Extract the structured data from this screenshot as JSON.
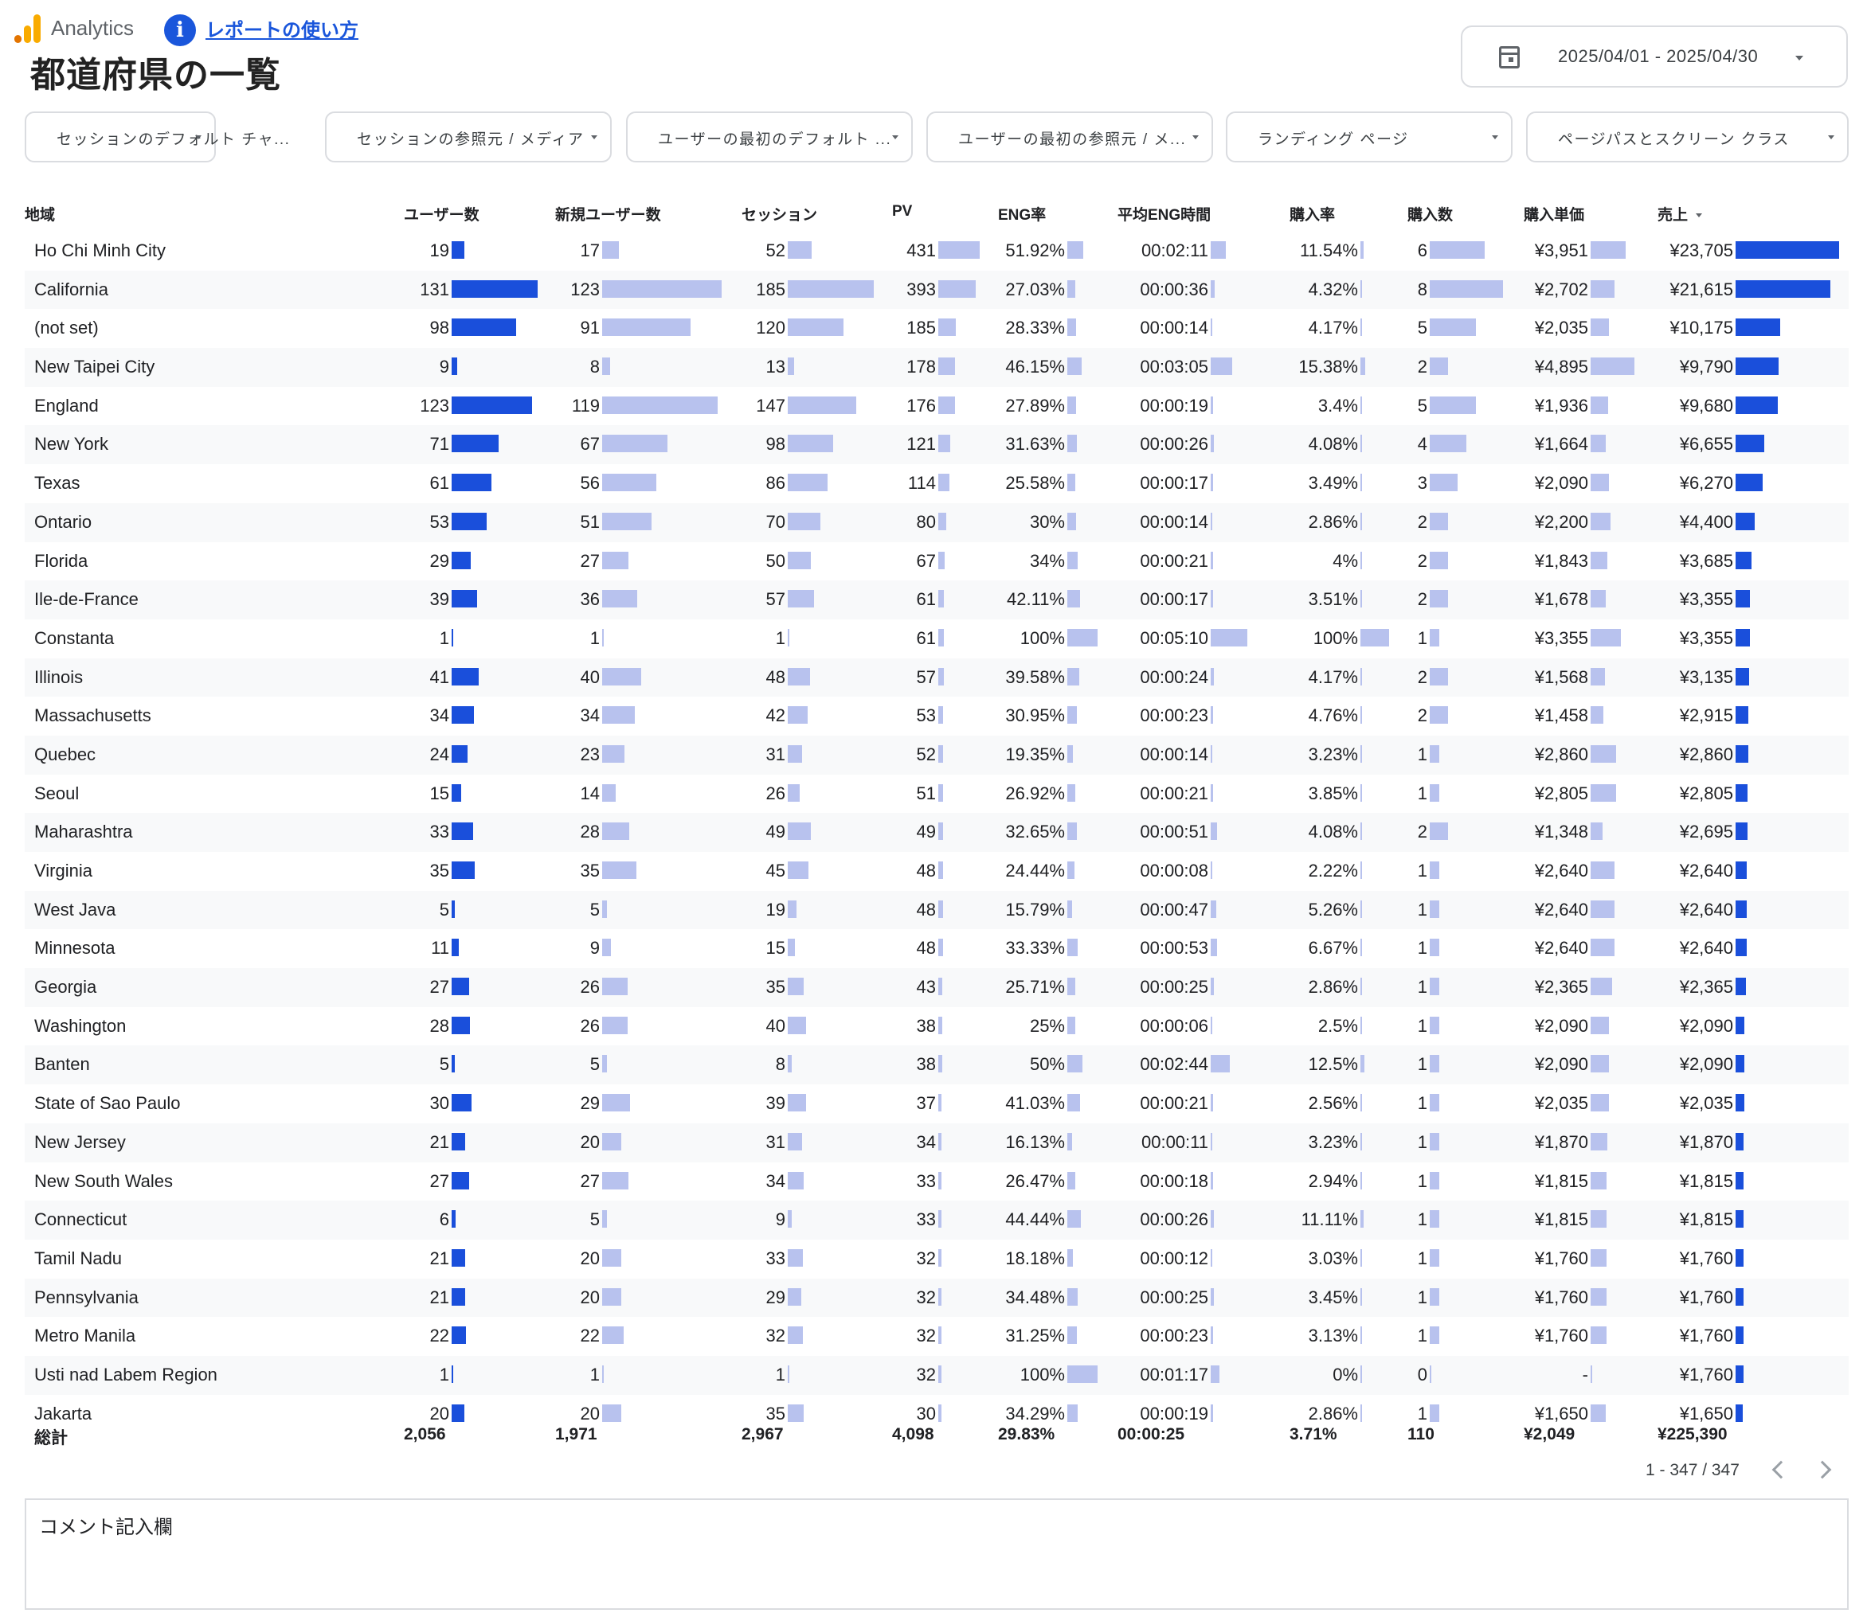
{
  "header": {
    "app_name": "Analytics",
    "help_link": "レポートの使い方",
    "title": "都道府県の一覧",
    "date_range": "2025/04/01 - 2025/04/30"
  },
  "colors": {
    "bar_primary": "#1a4fdb",
    "bar_secondary": "#b8c2ee",
    "link": "#1a56db",
    "logo_orange": "#f9ab00",
    "logo_dark": "#e37400"
  },
  "filters": [
    "セッションのデフォルト チャ...",
    "セッションの参照元 / メディア",
    "ユーザーの最初のデフォルト ...",
    "ユーザーの最初の参照元 / メ...",
    "ランディング ページ",
    "ページパスとスクリーン クラス"
  ],
  "table": {
    "columns": [
      "地域",
      "ユーザー数",
      "新規ユーザー数",
      "セッション",
      "PV",
      "ENG率",
      "平均ENG時間",
      "購入率",
      "購入数",
      "購入単価",
      "売上"
    ],
    "sorted_column": "売上",
    "sort_direction": "descending",
    "rows": [
      {
        "region": "Ho Chi Minh City",
        "users": "19",
        "new_users": "17",
        "sessions": "52",
        "pv": "431",
        "eng_rate": "51.92%",
        "eng_time": "00:02:11",
        "purchase_rate": "11.54%",
        "purchases": "6",
        "unit_price": "¥3,951",
        "revenue": "¥23,705"
      },
      {
        "region": "California",
        "users": "131",
        "new_users": "123",
        "sessions": "185",
        "pv": "393",
        "eng_rate": "27.03%",
        "eng_time": "00:00:36",
        "purchase_rate": "4.32%",
        "purchases": "8",
        "unit_price": "¥2,702",
        "revenue": "¥21,615"
      },
      {
        "region": "(not set)",
        "users": "98",
        "new_users": "91",
        "sessions": "120",
        "pv": "185",
        "eng_rate": "28.33%",
        "eng_time": "00:00:14",
        "purchase_rate": "4.17%",
        "purchases": "5",
        "unit_price": "¥2,035",
        "revenue": "¥10,175"
      },
      {
        "region": "New Taipei City",
        "users": "9",
        "new_users": "8",
        "sessions": "13",
        "pv": "178",
        "eng_rate": "46.15%",
        "eng_time": "00:03:05",
        "purchase_rate": "15.38%",
        "purchases": "2",
        "unit_price": "¥4,895",
        "revenue": "¥9,790"
      },
      {
        "region": "England",
        "users": "123",
        "new_users": "119",
        "sessions": "147",
        "pv": "176",
        "eng_rate": "27.89%",
        "eng_time": "00:00:19",
        "purchase_rate": "3.4%",
        "purchases": "5",
        "unit_price": "¥1,936",
        "revenue": "¥9,680"
      },
      {
        "region": "New York",
        "users": "71",
        "new_users": "67",
        "sessions": "98",
        "pv": "121",
        "eng_rate": "31.63%",
        "eng_time": "00:00:26",
        "purchase_rate": "4.08%",
        "purchases": "4",
        "unit_price": "¥1,664",
        "revenue": "¥6,655"
      },
      {
        "region": "Texas",
        "users": "61",
        "new_users": "56",
        "sessions": "86",
        "pv": "114",
        "eng_rate": "25.58%",
        "eng_time": "00:00:17",
        "purchase_rate": "3.49%",
        "purchases": "3",
        "unit_price": "¥2,090",
        "revenue": "¥6,270"
      },
      {
        "region": "Ontario",
        "users": "53",
        "new_users": "51",
        "sessions": "70",
        "pv": "80",
        "eng_rate": "30%",
        "eng_time": "00:00:14",
        "purchase_rate": "2.86%",
        "purchases": "2",
        "unit_price": "¥2,200",
        "revenue": "¥4,400"
      },
      {
        "region": "Florida",
        "users": "29",
        "new_users": "27",
        "sessions": "50",
        "pv": "67",
        "eng_rate": "34%",
        "eng_time": "00:00:21",
        "purchase_rate": "4%",
        "purchases": "2",
        "unit_price": "¥1,843",
        "revenue": "¥3,685"
      },
      {
        "region": "Ile-de-France",
        "users": "39",
        "new_users": "36",
        "sessions": "57",
        "pv": "61",
        "eng_rate": "42.11%",
        "eng_time": "00:00:17",
        "purchase_rate": "3.51%",
        "purchases": "2",
        "unit_price": "¥1,678",
        "revenue": "¥3,355"
      },
      {
        "region": "Constanta",
        "users": "1",
        "new_users": "1",
        "sessions": "1",
        "pv": "61",
        "eng_rate": "100%",
        "eng_time": "00:05:10",
        "purchase_rate": "100%",
        "purchases": "1",
        "unit_price": "¥3,355",
        "revenue": "¥3,355"
      },
      {
        "region": "Illinois",
        "users": "41",
        "new_users": "40",
        "sessions": "48",
        "pv": "57",
        "eng_rate": "39.58%",
        "eng_time": "00:00:24",
        "purchase_rate": "4.17%",
        "purchases": "2",
        "unit_price": "¥1,568",
        "revenue": "¥3,135"
      },
      {
        "region": "Massachusetts",
        "users": "34",
        "new_users": "34",
        "sessions": "42",
        "pv": "53",
        "eng_rate": "30.95%",
        "eng_time": "00:00:23",
        "purchase_rate": "4.76%",
        "purchases": "2",
        "unit_price": "¥1,458",
        "revenue": "¥2,915"
      },
      {
        "region": "Quebec",
        "users": "24",
        "new_users": "23",
        "sessions": "31",
        "pv": "52",
        "eng_rate": "19.35%",
        "eng_time": "00:00:14",
        "purchase_rate": "3.23%",
        "purchases": "1",
        "unit_price": "¥2,860",
        "revenue": "¥2,860"
      },
      {
        "region": "Seoul",
        "users": "15",
        "new_users": "14",
        "sessions": "26",
        "pv": "51",
        "eng_rate": "26.92%",
        "eng_time": "00:00:21",
        "purchase_rate": "3.85%",
        "purchases": "1",
        "unit_price": "¥2,805",
        "revenue": "¥2,805"
      },
      {
        "region": "Maharashtra",
        "users": "33",
        "new_users": "28",
        "sessions": "49",
        "pv": "49",
        "eng_rate": "32.65%",
        "eng_time": "00:00:51",
        "purchase_rate": "4.08%",
        "purchases": "2",
        "unit_price": "¥1,348",
        "revenue": "¥2,695"
      },
      {
        "region": "Virginia",
        "users": "35",
        "new_users": "35",
        "sessions": "45",
        "pv": "48",
        "eng_rate": "24.44%",
        "eng_time": "00:00:08",
        "purchase_rate": "2.22%",
        "purchases": "1",
        "unit_price": "¥2,640",
        "revenue": "¥2,640"
      },
      {
        "region": "West Java",
        "users": "5",
        "new_users": "5",
        "sessions": "19",
        "pv": "48",
        "eng_rate": "15.79%",
        "eng_time": "00:00:47",
        "purchase_rate": "5.26%",
        "purchases": "1",
        "unit_price": "¥2,640",
        "revenue": "¥2,640"
      },
      {
        "region": "Minnesota",
        "users": "11",
        "new_users": "9",
        "sessions": "15",
        "pv": "48",
        "eng_rate": "33.33%",
        "eng_time": "00:00:53",
        "purchase_rate": "6.67%",
        "purchases": "1",
        "unit_price": "¥2,640",
        "revenue": "¥2,640"
      },
      {
        "region": "Georgia",
        "users": "27",
        "new_users": "26",
        "sessions": "35",
        "pv": "43",
        "eng_rate": "25.71%",
        "eng_time": "00:00:25",
        "purchase_rate": "2.86%",
        "purchases": "1",
        "unit_price": "¥2,365",
        "revenue": "¥2,365"
      },
      {
        "region": "Washington",
        "users": "28",
        "new_users": "26",
        "sessions": "40",
        "pv": "38",
        "eng_rate": "25%",
        "eng_time": "00:00:06",
        "purchase_rate": "2.5%",
        "purchases": "1",
        "unit_price": "¥2,090",
        "revenue": "¥2,090"
      },
      {
        "region": "Banten",
        "users": "5",
        "new_users": "5",
        "sessions": "8",
        "pv": "38",
        "eng_rate": "50%",
        "eng_time": "00:02:44",
        "purchase_rate": "12.5%",
        "purchases": "1",
        "unit_price": "¥2,090",
        "revenue": "¥2,090"
      },
      {
        "region": "State of Sao Paulo",
        "users": "30",
        "new_users": "29",
        "sessions": "39",
        "pv": "37",
        "eng_rate": "41.03%",
        "eng_time": "00:00:21",
        "purchase_rate": "2.56%",
        "purchases": "1",
        "unit_price": "¥2,035",
        "revenue": "¥2,035"
      },
      {
        "region": "New Jersey",
        "users": "21",
        "new_users": "20",
        "sessions": "31",
        "pv": "34",
        "eng_rate": "16.13%",
        "eng_time": "00:00:11",
        "purchase_rate": "3.23%",
        "purchases": "1",
        "unit_price": "¥1,870",
        "revenue": "¥1,870"
      },
      {
        "region": "New South Wales",
        "users": "27",
        "new_users": "27",
        "sessions": "34",
        "pv": "33",
        "eng_rate": "26.47%",
        "eng_time": "00:00:18",
        "purchase_rate": "2.94%",
        "purchases": "1",
        "unit_price": "¥1,815",
        "revenue": "¥1,815"
      },
      {
        "region": "Connecticut",
        "users": "6",
        "new_users": "5",
        "sessions": "9",
        "pv": "33",
        "eng_rate": "44.44%",
        "eng_time": "00:00:26",
        "purchase_rate": "11.11%",
        "purchases": "1",
        "unit_price": "¥1,815",
        "revenue": "¥1,815"
      },
      {
        "region": "Tamil Nadu",
        "users": "21",
        "new_users": "20",
        "sessions": "33",
        "pv": "32",
        "eng_rate": "18.18%",
        "eng_time": "00:00:12",
        "purchase_rate": "3.03%",
        "purchases": "1",
        "unit_price": "¥1,760",
        "revenue": "¥1,760"
      },
      {
        "region": "Pennsylvania",
        "users": "21",
        "new_users": "20",
        "sessions": "29",
        "pv": "32",
        "eng_rate": "34.48%",
        "eng_time": "00:00:25",
        "purchase_rate": "3.45%",
        "purchases": "1",
        "unit_price": "¥1,760",
        "revenue": "¥1,760"
      },
      {
        "region": "Metro Manila",
        "users": "22",
        "new_users": "22",
        "sessions": "32",
        "pv": "32",
        "eng_rate": "31.25%",
        "eng_time": "00:00:23",
        "purchase_rate": "3.13%",
        "purchases": "1",
        "unit_price": "¥1,760",
        "revenue": "¥1,760"
      },
      {
        "region": "Usti nad Labem Region",
        "users": "1",
        "new_users": "1",
        "sessions": "1",
        "pv": "32",
        "eng_rate": "100%",
        "eng_time": "00:01:17",
        "purchase_rate": "0%",
        "purchases": "0",
        "unit_price": "-",
        "revenue": "¥1,760"
      },
      {
        "region": "Jakarta",
        "users": "20",
        "new_users": "20",
        "sessions": "35",
        "pv": "30",
        "eng_rate": "34.29%",
        "eng_time": "00:00:19",
        "purchase_rate": "2.86%",
        "purchases": "1",
        "unit_price": "¥1,650",
        "revenue": "¥1,650"
      }
    ],
    "totals": {
      "label": "総計",
      "users": "2,056",
      "new_users": "1,971",
      "sessions": "2,967",
      "pv": "4,098",
      "eng_rate": "29.83%",
      "eng_time": "00:00:25",
      "purchase_rate": "3.71%",
      "purchases": "110",
      "unit_price": "¥2,049",
      "revenue": "¥225,390"
    }
  },
  "pagination": {
    "label": "1 - 347 / 347"
  },
  "comment_box": {
    "label": "コメント記入欄"
  }
}
